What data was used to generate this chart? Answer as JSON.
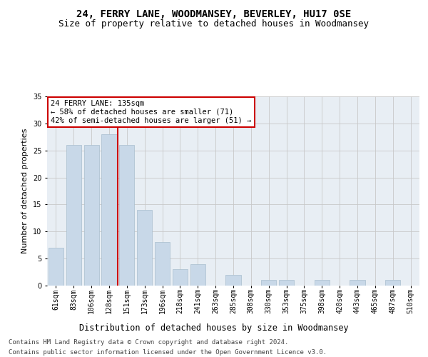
{
  "title": "24, FERRY LANE, WOODMANSEY, BEVERLEY, HU17 0SE",
  "subtitle": "Size of property relative to detached houses in Woodmansey",
  "xlabel": "Distribution of detached houses by size in Woodmansey",
  "ylabel": "Number of detached properties",
  "categories": [
    "61sqm",
    "83sqm",
    "106sqm",
    "128sqm",
    "151sqm",
    "173sqm",
    "196sqm",
    "218sqm",
    "241sqm",
    "263sqm",
    "285sqm",
    "308sqm",
    "330sqm",
    "353sqm",
    "375sqm",
    "398sqm",
    "420sqm",
    "443sqm",
    "465sqm",
    "487sqm",
    "510sqm"
  ],
  "values": [
    7,
    26,
    26,
    28,
    26,
    14,
    8,
    3,
    4,
    0,
    2,
    0,
    1,
    1,
    0,
    1,
    0,
    1,
    0,
    1,
    0
  ],
  "bar_color": "#c8d8e8",
  "bar_edgecolor": "#a8bece",
  "vline_color": "#cc0000",
  "annotation_text": "24 FERRY LANE: 135sqm\n← 58% of detached houses are smaller (71)\n42% of semi-detached houses are larger (51) →",
  "annotation_box_edgecolor": "#cc0000",
  "annotation_fontsize": 7.5,
  "ylim": [
    0,
    35
  ],
  "yticks": [
    0,
    5,
    10,
    15,
    20,
    25,
    30,
    35
  ],
  "grid_color": "#c8c8c8",
  "background_color": "#e8eef4",
  "footer_line1": "Contains HM Land Registry data © Crown copyright and database right 2024.",
  "footer_line2": "Contains public sector information licensed under the Open Government Licence v3.0.",
  "title_fontsize": 10,
  "subtitle_fontsize": 9,
  "xlabel_fontsize": 8.5,
  "ylabel_fontsize": 8,
  "tick_fontsize": 7,
  "footer_fontsize": 6.5
}
